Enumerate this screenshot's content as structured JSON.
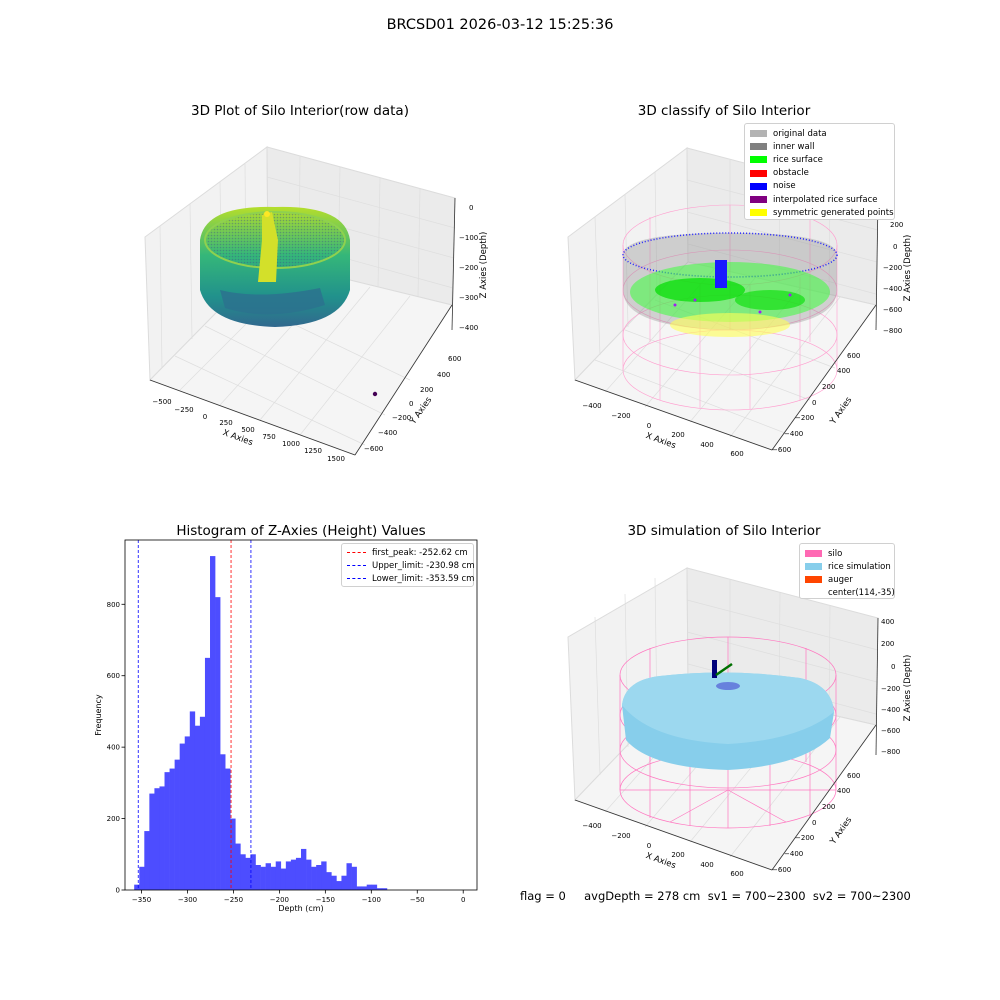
{
  "suptitle": "BRCSD01 2026-03-12 15:25:36",
  "plots": {
    "raw": {
      "title": "3D Plot of Silo Interior(row data)",
      "xlabel": "X Axies",
      "ylabel": "Y Axies",
      "zlabel": "Z Axies (Depth)",
      "xticks": [
        "−500",
        "−250",
        "0",
        "250",
        "500",
        "750",
        "1000",
        "1250",
        "1500"
      ],
      "yticks": [
        "600",
        "400",
        "200",
        "0",
        "−200",
        "−400",
        "−600"
      ],
      "zticks": [
        "0",
        "−100",
        "−200",
        "−300",
        "−400"
      ]
    },
    "classify": {
      "title": "3D classify of Silo Interior",
      "xlabel": "X Axies",
      "ylabel": "Y Axies",
      "zlabel": "Z Axies (Depth)",
      "xticks": [
        "−400",
        "−200",
        "0",
        "200",
        "400",
        "600"
      ],
      "yticks": [
        "600",
        "400",
        "200",
        "0",
        "−200",
        "−400",
        "−600"
      ],
      "zticks": [
        "200",
        "0",
        "−200",
        "−400",
        "−600",
        "−800"
      ],
      "legend": [
        {
          "label": "original data",
          "color": "#b3b3b3"
        },
        {
          "label": "inner wall",
          "color": "#808080"
        },
        {
          "label": "rice surface",
          "color": "#00ff00"
        },
        {
          "label": "obstacle",
          "color": "#ff0000"
        },
        {
          "label": "noise",
          "color": "#0000ff"
        },
        {
          "label": "interpolated rice surface",
          "color": "#800080"
        },
        {
          "label": "symmetric generated points",
          "color": "#ffff00"
        }
      ]
    },
    "simulation": {
      "title": "3D simulation of Silo Interior",
      "xlabel": "X Axies",
      "ylabel": "Y Axies",
      "zlabel": "Z Axies (Depth)",
      "xticks": [
        "−400",
        "−200",
        "0",
        "200",
        "400",
        "600"
      ],
      "yticks": [
        "600",
        "400",
        "200",
        "0",
        "−200",
        "−400",
        "−600"
      ],
      "zticks": [
        "400",
        "200",
        "0",
        "−200",
        "−400",
        "−600",
        "−800"
      ],
      "legend": [
        {
          "label": "silo",
          "color": "#ff69b4"
        },
        {
          "label": "rice simulation",
          "color": "#87ceeb"
        },
        {
          "label": "auger",
          "color": "#ff4500"
        },
        {
          "label": "center(114,-35)",
          "color": ""
        }
      ]
    }
  },
  "footer": "flag = 0     avgDepth = 278 cm  sv1 = 700~2300  sv2 = 700~2300",
  "chart_data": {
    "type": "bar",
    "title": "Histogram of Z-Axies (Height) Values",
    "xlabel": "Depth (cm)",
    "ylabel": "Frequency",
    "xlim": [
      -368,
      15
    ],
    "ylim": [
      0,
      980
    ],
    "xticks": [
      -350,
      -300,
      -250,
      -200,
      -150,
      -100,
      -50,
      0
    ],
    "xtick_labels": [
      "−350",
      "−300",
      "−250",
      "−200",
      "−150",
      "−100",
      "−50",
      "0"
    ],
    "yticks": [
      0,
      200,
      400,
      600,
      800
    ],
    "bar_color": "#4d4dff",
    "bin_start": -358,
    "bin_width": 5.5,
    "values": [
      15,
      65,
      165,
      270,
      285,
      290,
      330,
      340,
      365,
      410,
      430,
      500,
      460,
      485,
      650,
      935,
      820,
      380,
      340,
      200,
      130,
      100,
      90,
      100,
      70,
      65,
      75,
      65,
      80,
      60,
      80,
      85,
      90,
      115,
      85,
      65,
      70,
      80,
      50,
      40,
      25,
      40,
      75,
      65,
      10,
      10,
      15,
      15,
      5,
      5
    ],
    "lines": [
      {
        "label": "first_peak: -252.62 cm",
        "x": -252.62,
        "color": "#ff0000"
      },
      {
        "label": "Upper_limit: -230.98 cm",
        "x": -230.98,
        "color": "#0000ff"
      },
      {
        "label": "Lower_limit: -353.59 cm",
        "x": -353.59,
        "color": "#0000ff"
      }
    ]
  }
}
